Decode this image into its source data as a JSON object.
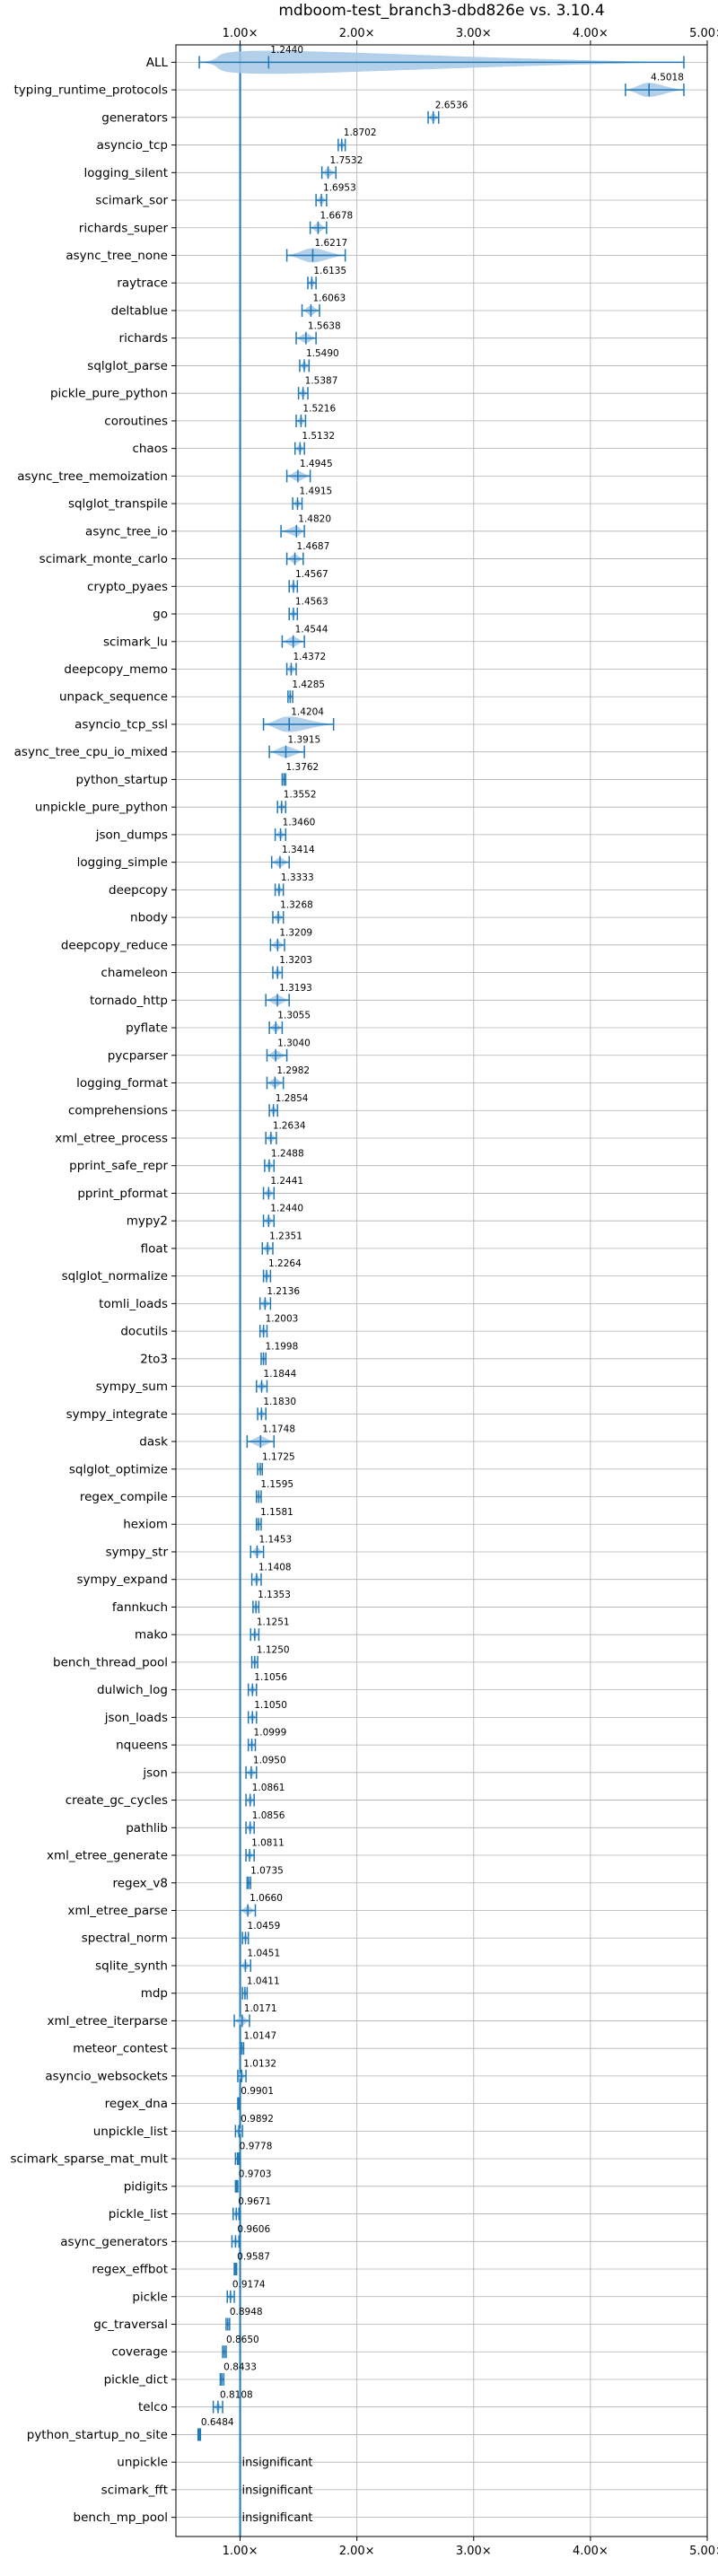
{
  "chart_data": {
    "type": "violin",
    "title": "mdboom-test_branch3-dbd826e vs. 3.10.4",
    "xlabel": "",
    "ylabel": "",
    "xlim": [
      0.45,
      5.0
    ],
    "x_ticks": [
      1,
      2,
      3,
      4,
      5
    ],
    "x_tick_labels": [
      "1.00×",
      "2.00×",
      "3.00×",
      "4.00×",
      "5.00×"
    ],
    "x_tick_labels_top": [
      "1.00×",
      "2.00×",
      "3.00×",
      "4.00×",
      "5.00×"
    ],
    "grid": true,
    "reference_line": 1.0,
    "colors": {
      "violin": "#a6c8e8",
      "line": "#1f77b4",
      "grid": "#b0b0b0"
    },
    "benchmarks": [
      {
        "name": "ALL",
        "value": 1.244,
        "label": "1.2440",
        "min": 0.65,
        "max": 4.8
      },
      {
        "name": "typing_runtime_protocols",
        "value": 4.5018,
        "label": "4.5018",
        "min": 4.3,
        "max": 4.8
      },
      {
        "name": "generators",
        "value": 2.6536,
        "label": "2.6536",
        "min": 2.61,
        "max": 2.7
      },
      {
        "name": "asyncio_tcp",
        "value": 1.8702,
        "label": "1.8702",
        "min": 1.84,
        "max": 1.9
      },
      {
        "name": "logging_silent",
        "value": 1.7532,
        "label": "1.7532",
        "min": 1.7,
        "max": 1.82
      },
      {
        "name": "scimark_sor",
        "value": 1.6953,
        "label": "1.6953",
        "min": 1.65,
        "max": 1.74
      },
      {
        "name": "richards_super",
        "value": 1.6678,
        "label": "1.6678",
        "min": 1.6,
        "max": 1.74
      },
      {
        "name": "async_tree_none",
        "value": 1.6217,
        "label": "1.6217",
        "min": 1.4,
        "max": 1.9
      },
      {
        "name": "raytrace",
        "value": 1.6135,
        "label": "1.6135",
        "min": 1.58,
        "max": 1.65
      },
      {
        "name": "deltablue",
        "value": 1.6063,
        "label": "1.6063",
        "min": 1.53,
        "max": 1.68
      },
      {
        "name": "richards",
        "value": 1.5638,
        "label": "1.5638",
        "min": 1.48,
        "max": 1.65
      },
      {
        "name": "sqlglot_parse",
        "value": 1.549,
        "label": "1.5490",
        "min": 1.51,
        "max": 1.59
      },
      {
        "name": "pickle_pure_python",
        "value": 1.5387,
        "label": "1.5387",
        "min": 1.5,
        "max": 1.58
      },
      {
        "name": "coroutines",
        "value": 1.5216,
        "label": "1.5216",
        "min": 1.48,
        "max": 1.56
      },
      {
        "name": "chaos",
        "value": 1.5132,
        "label": "1.5132",
        "min": 1.47,
        "max": 1.55
      },
      {
        "name": "async_tree_memoization",
        "value": 1.4945,
        "label": "1.4945",
        "min": 1.4,
        "max": 1.6
      },
      {
        "name": "sqlglot_transpile",
        "value": 1.4915,
        "label": "1.4915",
        "min": 1.45,
        "max": 1.53
      },
      {
        "name": "async_tree_io",
        "value": 1.482,
        "label": "1.4820",
        "min": 1.35,
        "max": 1.55
      },
      {
        "name": "scimark_monte_carlo",
        "value": 1.4687,
        "label": "1.4687",
        "min": 1.4,
        "max": 1.54
      },
      {
        "name": "crypto_pyaes",
        "value": 1.4567,
        "label": "1.4567",
        "min": 1.42,
        "max": 1.49
      },
      {
        "name": "go",
        "value": 1.4563,
        "label": "1.4563",
        "min": 1.42,
        "max": 1.49
      },
      {
        "name": "scimark_lu",
        "value": 1.4544,
        "label": "1.4544",
        "min": 1.36,
        "max": 1.55
      },
      {
        "name": "deepcopy_memo",
        "value": 1.4372,
        "label": "1.4372",
        "min": 1.4,
        "max": 1.48
      },
      {
        "name": "unpack_sequence",
        "value": 1.4285,
        "label": "1.4285",
        "min": 1.41,
        "max": 1.45
      },
      {
        "name": "asyncio_tcp_ssl",
        "value": 1.4204,
        "label": "1.4204",
        "min": 1.2,
        "max": 1.8
      },
      {
        "name": "async_tree_cpu_io_mixed",
        "value": 1.3915,
        "label": "1.3915",
        "min": 1.25,
        "max": 1.55
      },
      {
        "name": "python_startup",
        "value": 1.3762,
        "label": "1.3762",
        "min": 1.36,
        "max": 1.39
      },
      {
        "name": "unpickle_pure_python",
        "value": 1.3552,
        "label": "1.3552",
        "min": 1.32,
        "max": 1.39
      },
      {
        "name": "json_dumps",
        "value": 1.346,
        "label": "1.3460",
        "min": 1.3,
        "max": 1.39
      },
      {
        "name": "logging_simple",
        "value": 1.3414,
        "label": "1.3414",
        "min": 1.27,
        "max": 1.42
      },
      {
        "name": "deepcopy",
        "value": 1.3333,
        "label": "1.3333",
        "min": 1.3,
        "max": 1.37
      },
      {
        "name": "nbody",
        "value": 1.3268,
        "label": "1.3268",
        "min": 1.28,
        "max": 1.37
      },
      {
        "name": "deepcopy_reduce",
        "value": 1.3209,
        "label": "1.3209",
        "min": 1.26,
        "max": 1.38
      },
      {
        "name": "chameleon",
        "value": 1.3203,
        "label": "1.3203",
        "min": 1.28,
        "max": 1.36
      },
      {
        "name": "tornado_http",
        "value": 1.3193,
        "label": "1.3193",
        "min": 1.22,
        "max": 1.42
      },
      {
        "name": "pyflate",
        "value": 1.3055,
        "label": "1.3055",
        "min": 1.25,
        "max": 1.36
      },
      {
        "name": "pycparser",
        "value": 1.304,
        "label": "1.3040",
        "min": 1.23,
        "max": 1.4
      },
      {
        "name": "logging_format",
        "value": 1.2982,
        "label": "1.2982",
        "min": 1.23,
        "max": 1.37
      },
      {
        "name": "comprehensions",
        "value": 1.2854,
        "label": "1.2854",
        "min": 1.25,
        "max": 1.32
      },
      {
        "name": "xml_etree_process",
        "value": 1.2634,
        "label": "1.2634",
        "min": 1.22,
        "max": 1.31
      },
      {
        "name": "pprint_safe_repr",
        "value": 1.2488,
        "label": "1.2488",
        "min": 1.21,
        "max": 1.29
      },
      {
        "name": "pprint_pformat",
        "value": 1.2441,
        "label": "1.2441",
        "min": 1.2,
        "max": 1.29
      },
      {
        "name": "mypy2",
        "value": 1.244,
        "label": "1.2440",
        "min": 1.2,
        "max": 1.29
      },
      {
        "name": "float",
        "value": 1.2351,
        "label": "1.2351",
        "min": 1.19,
        "max": 1.28
      },
      {
        "name": "sqlglot_normalize",
        "value": 1.2264,
        "label": "1.2264",
        "min": 1.2,
        "max": 1.26
      },
      {
        "name": "tomli_loads",
        "value": 1.2136,
        "label": "1.2136",
        "min": 1.17,
        "max": 1.26
      },
      {
        "name": "docutils",
        "value": 1.2003,
        "label": "1.2003",
        "min": 1.17,
        "max": 1.23
      },
      {
        "name": "2to3",
        "value": 1.1998,
        "label": "1.1998",
        "min": 1.18,
        "max": 1.22
      },
      {
        "name": "sympy_sum",
        "value": 1.1844,
        "label": "1.1844",
        "min": 1.14,
        "max": 1.23
      },
      {
        "name": "sympy_integrate",
        "value": 1.183,
        "label": "1.1830",
        "min": 1.15,
        "max": 1.22
      },
      {
        "name": "dask",
        "value": 1.1748,
        "label": "1.1748",
        "min": 1.06,
        "max": 1.29
      },
      {
        "name": "sqlglot_optimize",
        "value": 1.1725,
        "label": "1.1725",
        "min": 1.15,
        "max": 1.19
      },
      {
        "name": "regex_compile",
        "value": 1.1595,
        "label": "1.1595",
        "min": 1.14,
        "max": 1.18
      },
      {
        "name": "hexiom",
        "value": 1.1581,
        "label": "1.1581",
        "min": 1.14,
        "max": 1.18
      },
      {
        "name": "sympy_str",
        "value": 1.1453,
        "label": "1.1453",
        "min": 1.09,
        "max": 1.2
      },
      {
        "name": "sympy_expand",
        "value": 1.1408,
        "label": "1.1408",
        "min": 1.1,
        "max": 1.18
      },
      {
        "name": "fannkuch",
        "value": 1.1353,
        "label": "1.1353",
        "min": 1.11,
        "max": 1.16
      },
      {
        "name": "mako",
        "value": 1.1251,
        "label": "1.1251",
        "min": 1.09,
        "max": 1.16
      },
      {
        "name": "bench_thread_pool",
        "value": 1.125,
        "label": "1.1250",
        "min": 1.1,
        "max": 1.15
      },
      {
        "name": "dulwich_log",
        "value": 1.1056,
        "label": "1.1056",
        "min": 1.07,
        "max": 1.14
      },
      {
        "name": "json_loads",
        "value": 1.105,
        "label": "1.1050",
        "min": 1.07,
        "max": 1.14
      },
      {
        "name": "nqueens",
        "value": 1.0999,
        "label": "1.0999",
        "min": 1.07,
        "max": 1.13
      },
      {
        "name": "json",
        "value": 1.095,
        "label": "1.0950",
        "min": 1.05,
        "max": 1.14
      },
      {
        "name": "create_gc_cycles",
        "value": 1.0861,
        "label": "1.0861",
        "min": 1.05,
        "max": 1.12
      },
      {
        "name": "pathlib",
        "value": 1.0856,
        "label": "1.0856",
        "min": 1.05,
        "max": 1.12
      },
      {
        "name": "xml_etree_generate",
        "value": 1.0811,
        "label": "1.0811",
        "min": 1.05,
        "max": 1.12
      },
      {
        "name": "regex_v8",
        "value": 1.0735,
        "label": "1.0735",
        "min": 1.06,
        "max": 1.09
      },
      {
        "name": "xml_etree_parse",
        "value": 1.066,
        "label": "1.0660",
        "min": 1.0,
        "max": 1.13
      },
      {
        "name": "spectral_norm",
        "value": 1.0459,
        "label": "1.0459",
        "min": 1.02,
        "max": 1.07
      },
      {
        "name": "sqlite_synth",
        "value": 1.0451,
        "label": "1.0451",
        "min": 1.0,
        "max": 1.09
      },
      {
        "name": "mdp",
        "value": 1.0411,
        "label": "1.0411",
        "min": 1.02,
        "max": 1.06
      },
      {
        "name": "xml_etree_iterparse",
        "value": 1.0171,
        "label": "1.0171",
        "min": 0.95,
        "max": 1.08
      },
      {
        "name": "meteor_contest",
        "value": 1.0147,
        "label": "1.0147",
        "min": 1.0,
        "max": 1.03
      },
      {
        "name": "asyncio_websockets",
        "value": 1.0132,
        "label": "1.0132",
        "min": 0.98,
        "max": 1.05
      },
      {
        "name": "regex_dna",
        "value": 0.9901,
        "label": "0.9901",
        "min": 0.98,
        "max": 1.0
      },
      {
        "name": "unpickle_list",
        "value": 0.9892,
        "label": "0.9892",
        "min": 0.96,
        "max": 1.02
      },
      {
        "name": "scimark_sparse_mat_mult",
        "value": 0.9778,
        "label": "0.9778",
        "min": 0.96,
        "max": 0.99
      },
      {
        "name": "pidigits",
        "value": 0.9703,
        "label": "0.9703",
        "min": 0.96,
        "max": 0.98
      },
      {
        "name": "pickle_list",
        "value": 0.9671,
        "label": "0.9671",
        "min": 0.94,
        "max": 0.99
      },
      {
        "name": "async_generators",
        "value": 0.9606,
        "label": "0.9606",
        "min": 0.93,
        "max": 0.99
      },
      {
        "name": "regex_effbot",
        "value": 0.9587,
        "label": "0.9587",
        "min": 0.95,
        "max": 0.97
      },
      {
        "name": "pickle",
        "value": 0.9174,
        "label": "0.9174",
        "min": 0.89,
        "max": 0.95
      },
      {
        "name": "gc_traversal",
        "value": 0.8948,
        "label": "0.8948",
        "min": 0.88,
        "max": 0.91
      },
      {
        "name": "coverage",
        "value": 0.865,
        "label": "0.8650",
        "min": 0.85,
        "max": 0.88
      },
      {
        "name": "pickle_dict",
        "value": 0.8433,
        "label": "0.8433",
        "min": 0.83,
        "max": 0.86
      },
      {
        "name": "telco",
        "value": 0.8108,
        "label": "0.8108",
        "min": 0.77,
        "max": 0.85
      },
      {
        "name": "python_startup_no_site",
        "value": 0.6484,
        "label": "0.6484",
        "min": 0.64,
        "max": 0.66
      },
      {
        "name": "unpickle",
        "value": null,
        "label": "insignificant"
      },
      {
        "name": "scimark_fft",
        "value": null,
        "label": "insignificant"
      },
      {
        "name": "bench_mp_pool",
        "value": null,
        "label": "insignificant"
      }
    ]
  }
}
